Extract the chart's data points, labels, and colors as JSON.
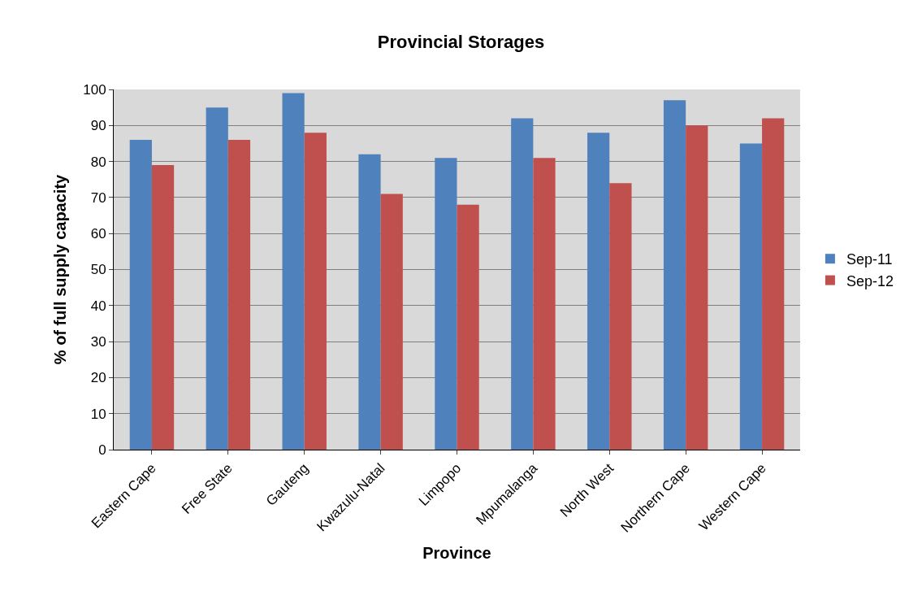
{
  "chart_data": {
    "type": "bar",
    "title": "Provincial Storages",
    "xlabel": "Province",
    "ylabel": "% of full supply capacity",
    "categories": [
      "Eastern Cape",
      "Free State",
      "Gauteng",
      "Kwazulu-Natal",
      "Limpopo",
      "Mpumalanga",
      "North West",
      "Northern Cape",
      "Western Cape"
    ],
    "series": [
      {
        "name": "Sep-11",
        "color": "#4f81bd",
        "values": [
          86,
          95,
          99,
          82,
          81,
          92,
          88,
          97,
          85
        ]
      },
      {
        "name": "Sep-12",
        "color": "#c0504d",
        "values": [
          79,
          86,
          88,
          71,
          68,
          81,
          74,
          90,
          92
        ]
      }
    ],
    "ylim": [
      0,
      100
    ],
    "yticks": [
      0,
      10,
      20,
      30,
      40,
      50,
      60,
      70,
      80,
      90,
      100
    ],
    "grid": "y",
    "legend": "right"
  }
}
